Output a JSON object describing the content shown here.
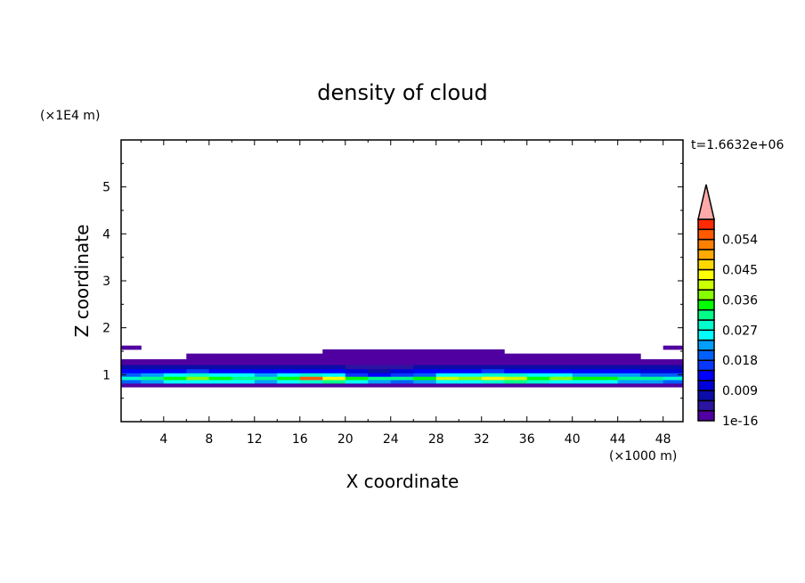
{
  "chart_data": {
    "type": "heatmap",
    "style": "filled-contour",
    "title": "density of cloud",
    "xlabel": "X coordinate",
    "ylabel": "Z coordinate",
    "x_unit_label": "(×1000 m)",
    "y_unit_label": "(×1E4 m)",
    "time_label": "t=1.6632e+06",
    "xlim": [
      0.25,
      49.75
    ],
    "ylim": [
      0,
      6
    ],
    "xticks": [
      4,
      8,
      12,
      16,
      20,
      24,
      28,
      32,
      36,
      40,
      44,
      48
    ],
    "yticks": [
      1,
      2,
      3,
      4,
      5
    ],
    "grid": false,
    "x": [
      1,
      3,
      5,
      7,
      9,
      11,
      13,
      15,
      17,
      19,
      21,
      23,
      25,
      27,
      29,
      31,
      33,
      35,
      37,
      39,
      41,
      43,
      45,
      47,
      49
    ],
    "z": [
      0.78,
      0.86,
      0.93,
      1.0,
      1.08,
      1.17,
      1.26,
      1.4,
      1.5,
      1.58
    ],
    "values": [
      [
        0.002,
        0.002,
        0.002,
        0.002,
        0.002,
        0.002,
        0.002,
        0.002,
        0.002,
        0.002,
        0.002,
        0.002,
        0.002,
        0.002,
        0.002,
        0.002,
        0.002,
        0.002,
        0.002,
        0.002,
        0.002,
        0.002,
        0.002,
        0.002,
        0.002
      ],
      [
        0.02,
        0.022,
        0.024,
        0.026,
        0.025,
        0.024,
        0.022,
        0.024,
        0.028,
        0.03,
        0.026,
        0.022,
        0.02,
        0.022,
        0.024,
        0.026,
        0.028,
        0.03,
        0.028,
        0.026,
        0.025,
        0.024,
        0.023,
        0.022,
        0.02
      ],
      [
        0.027,
        0.03,
        0.033,
        0.038,
        0.035,
        0.032,
        0.03,
        0.034,
        0.055,
        0.042,
        0.036,
        0.032,
        0.03,
        0.034,
        0.04,
        0.038,
        0.042,
        0.04,
        0.036,
        0.038,
        0.035,
        0.033,
        0.031,
        0.03,
        0.028
      ],
      [
        0.02,
        0.022,
        0.025,
        0.027,
        0.026,
        0.024,
        0.022,
        0.024,
        0.028,
        0.026,
        0.018,
        0.014,
        0.016,
        0.02,
        0.024,
        0.026,
        0.028,
        0.027,
        0.025,
        0.024,
        0.023,
        0.022,
        0.021,
        0.02,
        0.02
      ],
      [
        0.012,
        0.013,
        0.014,
        0.015,
        0.014,
        0.013,
        0.012,
        0.012,
        0.014,
        0.012,
        0.01,
        0.009,
        0.01,
        0.012,
        0.013,
        0.014,
        0.015,
        0.014,
        0.013,
        0.013,
        0.012,
        0.012,
        0.012,
        0.011,
        0.011
      ],
      [
        0.006,
        0.007,
        0.006,
        0.007,
        0.006,
        0.006,
        0.007,
        0.006,
        0.007,
        0.006,
        0.005,
        0.004,
        0.005,
        0.006,
        0.007,
        0.006,
        0.007,
        0.006,
        0.006,
        0.007,
        0.006,
        0.006,
        0.007,
        0.006,
        0.006
      ],
      [
        0.002,
        0.002,
        0.002,
        0.002,
        0.002,
        0.002,
        0.002,
        0.002,
        0.002,
        0.002,
        0.002,
        0.002,
        0.002,
        0.002,
        0.002,
        0.002,
        0.002,
        0.002,
        0.002,
        0.002,
        0.002,
        0.002,
        0.002,
        0.002,
        0.002
      ],
      [
        0,
        0,
        0,
        0.001,
        0.001,
        0.001,
        0.001,
        0.001,
        0.001,
        0.001,
        0.001,
        0.001,
        0.001,
        0.001,
        0.001,
        0.001,
        0.001,
        0.001,
        0.001,
        0.001,
        0.001,
        0.001,
        0.001,
        0,
        0
      ],
      [
        0,
        0,
        0,
        0,
        0,
        0,
        0,
        0,
        0,
        0.0005,
        0.0005,
        0.0005,
        0.0005,
        0.0005,
        0.0005,
        0.0005,
        0.0005,
        0,
        0,
        0,
        0,
        0,
        0,
        0,
        0
      ],
      [
        0.0005,
        0,
        0,
        0,
        0,
        0,
        0,
        0,
        0,
        0,
        0,
        0,
        0,
        0,
        0,
        0,
        0,
        0,
        0,
        0,
        0,
        0,
        0,
        0,
        0.0005
      ]
    ],
    "colorbar": {
      "levels_step": 0.003,
      "min_label": "1e-16",
      "labels": [
        "1e-16",
        "0.009",
        "0.018",
        "0.027",
        "0.036",
        "0.045",
        "0.054"
      ],
      "colors": [
        "#5000a0",
        "#2c14a0",
        "#0c0ca8",
        "#0000d8",
        "#0000ff",
        "#0838ff",
        "#0060ff",
        "#00a0ff",
        "#00ffff",
        "#00ffcc",
        "#00ff88",
        "#00ff00",
        "#88ff00",
        "#ccff00",
        "#ffff00",
        "#ffd800",
        "#ffaa00",
        "#ff8000",
        "#ff5a00",
        "#ff2a00",
        "#ff2828"
      ],
      "overflow_color": "#ffaaaa",
      "extend": "max"
    }
  }
}
